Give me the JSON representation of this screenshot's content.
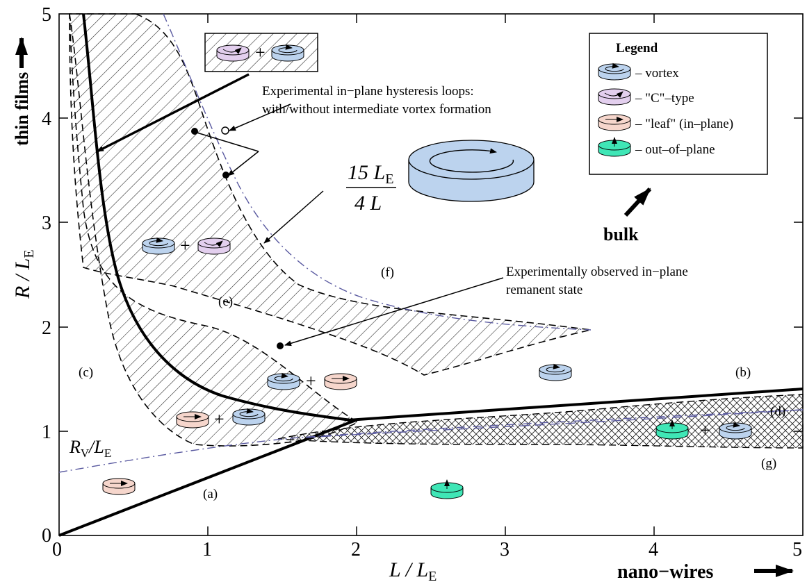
{
  "axes": {
    "x_ticks": [
      "0",
      "1",
      "2",
      "3",
      "4",
      "5"
    ],
    "y_ticks": [
      "0",
      "1",
      "2",
      "3",
      "4",
      "5"
    ],
    "x_label": {
      "main": "L / L",
      "sub": "E"
    },
    "y_label": {
      "main": "R / L",
      "sub": "E"
    }
  },
  "edge_labels": {
    "top_left": "thin films",
    "bottom_right": "nano−wires",
    "middle_right": "bulk"
  },
  "legend": {
    "title": "Legend",
    "items": [
      {
        "label": "– vortex",
        "color": "#bcd3ee"
      },
      {
        "label": "– \"C\"–type",
        "color": "#e3cfee"
      },
      {
        "label": "– \"leaf\" (in–plane)",
        "color": "#f6d6cc"
      },
      {
        "label": "– out–of–plane",
        "color": "#3fe6b6"
      }
    ]
  },
  "annotations": {
    "hysteresis_line1": "Experimental in−plane hysteresis loops:",
    "hysteresis_line2": "with/without intermediate vortex formation",
    "remanent_line1": "Experimentally observed in−plane",
    "remanent_line2": "remanent state",
    "formula_num": "15 L",
    "formula_num_sub": "E",
    "formula_den": "4 L",
    "rv_main": "R",
    "rv_sub1": "V",
    "rv_mid": "/L",
    "rv_sub2": "E",
    "plus": "+"
  },
  "region_labels": {
    "a": "(a)",
    "b": "(b)",
    "c": "(c)",
    "d": "(d)",
    "e": "(e)",
    "f": "(f)",
    "g": "(g)"
  },
  "colors": {
    "vortex": "#bcd3ee",
    "ctype": "#e3cfee",
    "leaf": "#f6d6cc",
    "oop": "#3fe6b6",
    "dashdot": "#5a5aa0"
  }
}
